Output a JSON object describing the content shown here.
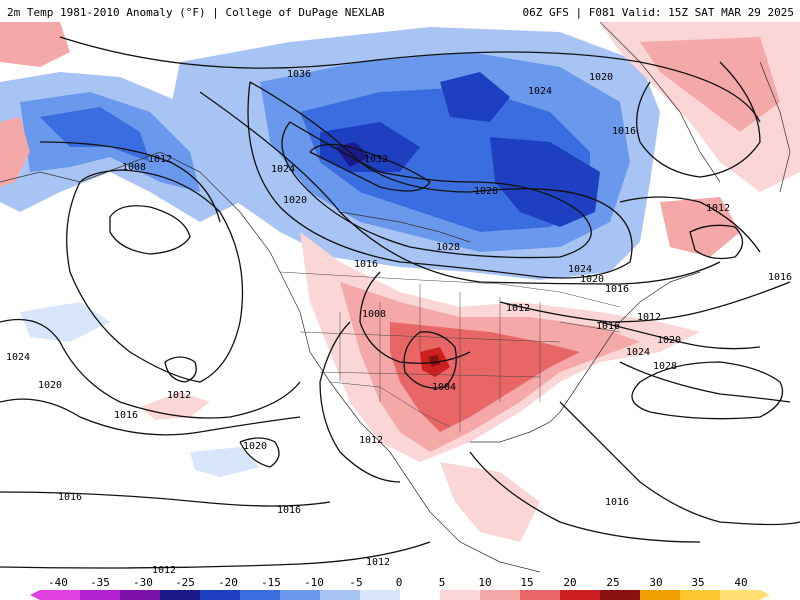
{
  "header": {
    "left": "2m Temp 1981-2010 Anomaly (°F) | College of DuPage NEXLAB",
    "right": "06Z GFS | F081 Valid: 15Z SAT MAR 29 2025"
  },
  "isobar_labels": [
    "1036",
    "1020",
    "1024",
    "1016",
    "1008",
    "1012",
    "1032",
    "1020",
    "1024",
    "1028",
    "1028",
    "1012",
    "1024",
    "1016",
    "1016",
    "1020",
    "1016",
    "1012",
    "1012",
    "1008",
    "1016",
    "1020",
    "1024",
    "1028",
    "1004",
    "1024",
    "1020",
    "1012",
    "1016",
    "1012",
    "1020",
    "1016",
    "1016",
    "1016",
    "1012",
    "1012"
  ],
  "colorbar": {
    "labels": [
      "-40",
      "-35",
      "-30",
      "-25",
      "-20",
      "-15",
      "-10",
      "-5",
      "0",
      "5",
      "10",
      "15",
      "20",
      "25",
      "30",
      "35",
      "40"
    ],
    "colors": [
      "#e040e0",
      "#b020d0",
      "#7a10a8",
      "#1a1a8a",
      "#1e40c0",
      "#3a6ee0",
      "#6a98ec",
      "#a8c4f4",
      "#d8e6fb",
      "#ffffff",
      "#fbd6d6",
      "#f5a8a8",
      "#e86666",
      "#cc2020",
      "#8a0f0f",
      "#f0a000",
      "#ffc830",
      "#ffe070"
    ]
  }
}
